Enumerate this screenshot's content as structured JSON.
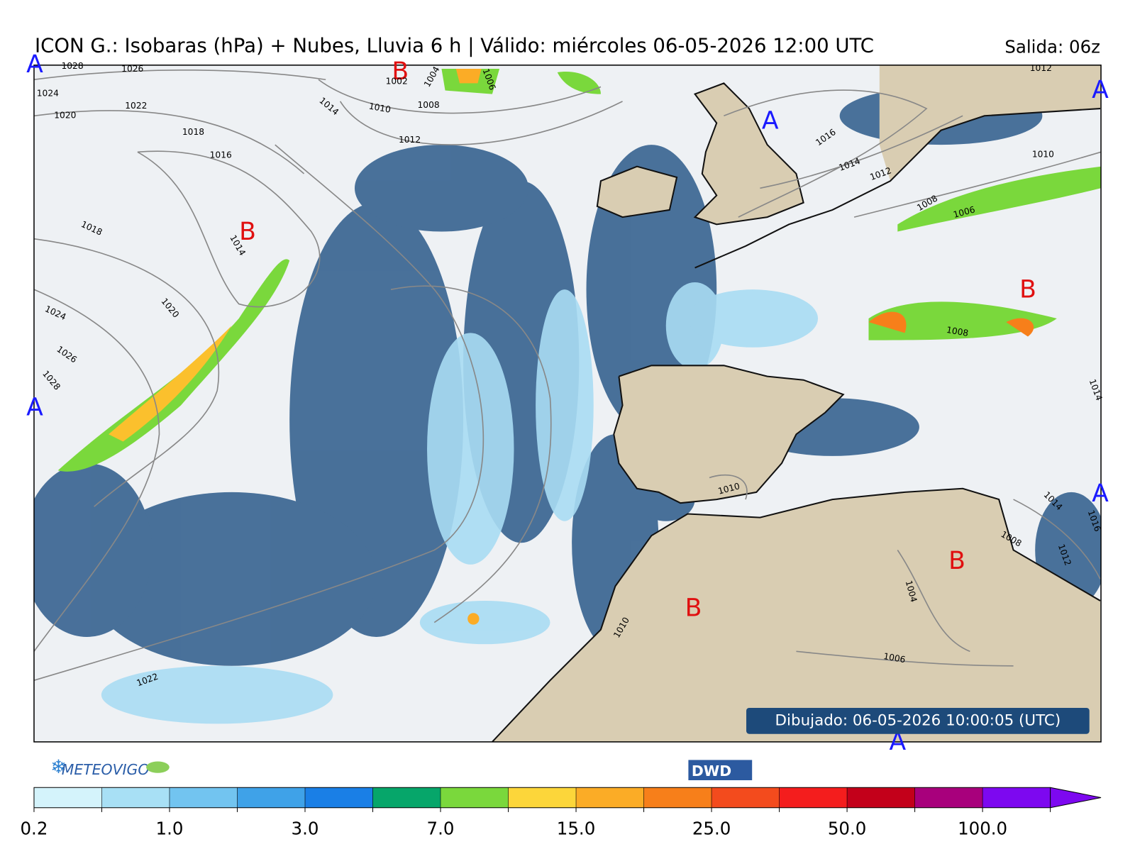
{
  "header": {
    "title": "ICON G.: Isobaras (hPa) + Nubes, Lluvia 6 h | Válido: miércoles 06-05-2026 12:00 UTC",
    "run": "Salida: 06z"
  },
  "map": {
    "pressure_centers": [
      {
        "label": "A",
        "color": "#1a1aff"
      },
      {
        "label": "B",
        "color": "#e01010"
      },
      {
        "label": "A",
        "color": "#1a1aff"
      },
      {
        "label": "A",
        "color": "#1a1aff"
      },
      {
        "label": "B",
        "color": "#e01010"
      },
      {
        "label": "B",
        "color": "#e01010"
      },
      {
        "label": "A",
        "color": "#1a1aff"
      },
      {
        "label": "A",
        "color": "#1a1aff"
      },
      {
        "label": "B",
        "color": "#e01010"
      },
      {
        "label": "B",
        "color": "#e01010"
      },
      {
        "label": "A",
        "color": "#1a1aff"
      }
    ],
    "isobar_labels": [
      "1028",
      "1026",
      "1024",
      "1022",
      "1020",
      "1018",
      "1016",
      "1018",
      "1014",
      "1020",
      "1024",
      "1026",
      "1028",
      "1022",
      "1014",
      "1010",
      "1008",
      "1012",
      "1004",
      "1002",
      "1006",
      "1016",
      "1014",
      "1012",
      "1008",
      "1006",
      "1010",
      "1012",
      "1008",
      "1010",
      "1014",
      "1016",
      "1008",
      "1012",
      "1004",
      "1006",
      "1010",
      "1014"
    ],
    "drawn": "Dibujado: 06-05-2026 10:00:05 (UTC)"
  },
  "footer": {
    "logo": "METEOVIGO",
    "agency": "DWD"
  },
  "colorbar": {
    "colors": [
      "#d4f3fb",
      "#a8e0f5",
      "#72c4f0",
      "#3fa2e8",
      "#1a7fe6",
      "#06a66a",
      "#7ad83c",
      "#fcd63a",
      "#fbac26",
      "#f77f1a",
      "#f34b1d",
      "#f41d1d",
      "#c3001a",
      "#a8007c",
      "#7d08f0"
    ],
    "labels": [
      "0.2",
      "1.0",
      "3.0",
      "7.0",
      "15.0",
      "25.0",
      "50.0",
      "100.0"
    ]
  }
}
